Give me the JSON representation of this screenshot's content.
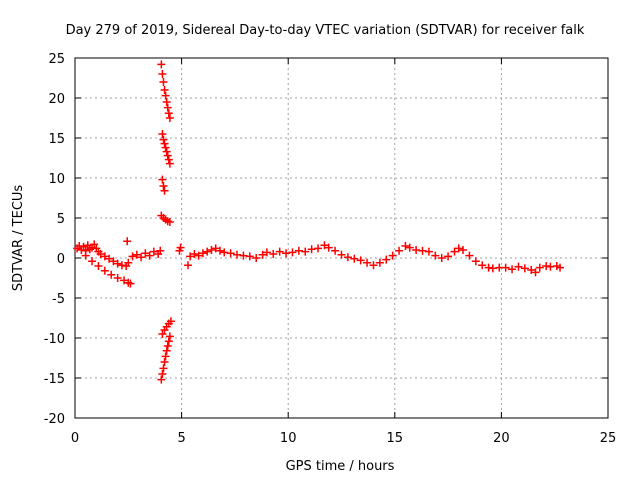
{
  "chart_data": {
    "type": "scatter",
    "title": "Day 279 of 2019, Sidereal Day-to-day VTEC variation (SDTVAR) for receiver falk",
    "xlabel": "GPS time / hours",
    "ylabel": "SDTVAR / TECUs",
    "xlim": [
      0,
      25
    ],
    "ylim": [
      -20,
      25
    ],
    "xticks": [
      0,
      5,
      10,
      15,
      20,
      25
    ],
    "yticks": [
      -20,
      -15,
      -10,
      -5,
      0,
      5,
      10,
      15,
      20,
      25
    ],
    "grid": true,
    "marker": "+",
    "color": "#ff0000",
    "series": [
      {
        "name": "main",
        "points": [
          [
            0.1,
            1.2
          ],
          [
            0.2,
            1.5
          ],
          [
            0.3,
            1.0
          ],
          [
            0.4,
            1.4
          ],
          [
            0.5,
            0.9
          ],
          [
            0.6,
            1.6
          ],
          [
            0.7,
            1.1
          ],
          [
            0.8,
            1.3
          ],
          [
            0.9,
            1.7
          ],
          [
            1.0,
            1.2
          ],
          [
            1.1,
            0.8
          ],
          [
            1.2,
            0.5
          ],
          [
            1.4,
            0.2
          ],
          [
            1.6,
            -0.1
          ],
          [
            1.8,
            -0.4
          ],
          [
            2.0,
            -0.7
          ],
          [
            2.2,
            -0.9
          ],
          [
            2.4,
            -1.0
          ],
          [
            2.45,
            2.1
          ],
          [
            2.5,
            -0.6
          ],
          [
            2.7,
            0.2
          ],
          [
            2.9,
            0.4
          ],
          [
            3.1,
            0.1
          ],
          [
            3.3,
            0.6
          ],
          [
            3.5,
            0.3
          ],
          [
            3.7,
            0.8
          ],
          [
            3.9,
            0.5
          ],
          [
            4.0,
            0.9
          ],
          [
            4.9,
            0.9
          ],
          [
            4.95,
            1.3
          ],
          [
            5.3,
            -0.9
          ],
          [
            5.4,
            0.2
          ],
          [
            5.6,
            0.5
          ],
          [
            5.8,
            0.3
          ],
          [
            6.0,
            0.6
          ],
          [
            6.2,
            0.8
          ],
          [
            6.4,
            1.0
          ],
          [
            6.6,
            1.2
          ],
          [
            6.8,
            0.9
          ],
          [
            7.0,
            0.7
          ],
          [
            7.3,
            0.6
          ],
          [
            7.6,
            0.4
          ],
          [
            7.9,
            0.3
          ],
          [
            8.2,
            0.2
          ],
          [
            8.5,
            0.0
          ],
          [
            8.8,
            0.4
          ],
          [
            9.0,
            0.7
          ],
          [
            9.3,
            0.5
          ],
          [
            9.6,
            0.8
          ],
          [
            9.9,
            0.6
          ],
          [
            10.2,
            0.7
          ],
          [
            10.5,
            0.9
          ],
          [
            10.8,
            0.8
          ],
          [
            11.1,
            1.1
          ],
          [
            11.4,
            1.2
          ],
          [
            11.7,
            1.6
          ],
          [
            11.9,
            1.3
          ],
          [
            12.2,
            0.9
          ],
          [
            12.5,
            0.4
          ],
          [
            12.8,
            0.1
          ],
          [
            13.1,
            -0.1
          ],
          [
            13.4,
            -0.3
          ],
          [
            13.7,
            -0.6
          ],
          [
            14.0,
            -0.9
          ],
          [
            14.3,
            -0.6
          ],
          [
            14.6,
            -0.2
          ],
          [
            14.9,
            0.3
          ],
          [
            15.2,
            0.9
          ],
          [
            15.5,
            1.5
          ],
          [
            15.7,
            1.3
          ],
          [
            16.0,
            1.0
          ],
          [
            16.3,
            0.9
          ],
          [
            16.6,
            0.8
          ],
          [
            16.9,
            0.3
          ],
          [
            17.2,
            0.0
          ],
          [
            17.5,
            0.2
          ],
          [
            17.8,
            0.8
          ],
          [
            18.0,
            1.2
          ],
          [
            18.2,
            1.0
          ],
          [
            18.5,
            0.3
          ],
          [
            18.8,
            -0.4
          ],
          [
            19.1,
            -0.9
          ],
          [
            19.4,
            -1.2
          ],
          [
            19.6,
            -1.3
          ],
          [
            19.9,
            -1.2
          ],
          [
            20.2,
            -1.2
          ],
          [
            20.5,
            -1.4
          ],
          [
            20.8,
            -1.1
          ],
          [
            21.1,
            -1.3
          ],
          [
            21.4,
            -1.5
          ],
          [
            21.6,
            -1.8
          ],
          [
            21.8,
            -1.2
          ],
          [
            22.1,
            -1.0
          ],
          [
            22.3,
            -1.1
          ],
          [
            22.6,
            -1.0
          ],
          [
            22.75,
            -1.2
          ]
        ]
      },
      {
        "name": "lower-branch",
        "points": [
          [
            0.5,
            0.3
          ],
          [
            0.8,
            -0.4
          ],
          [
            1.1,
            -1.0
          ],
          [
            1.4,
            -1.6
          ],
          [
            1.7,
            -2.1
          ],
          [
            2.0,
            -2.5
          ],
          [
            2.3,
            -2.8
          ],
          [
            2.5,
            -3.1
          ],
          [
            2.6,
            -3.2
          ]
        ]
      },
      {
        "name": "spike-upper",
        "points": [
          [
            4.05,
            24.2
          ],
          [
            4.1,
            23.0
          ],
          [
            4.15,
            22.0
          ],
          [
            4.2,
            21.0
          ],
          [
            4.25,
            20.3
          ],
          [
            4.3,
            19.5
          ],
          [
            4.35,
            18.8
          ],
          [
            4.4,
            18.1
          ],
          [
            4.45,
            17.5
          ],
          [
            4.1,
            15.5
          ],
          [
            4.15,
            14.8
          ],
          [
            4.2,
            14.3
          ],
          [
            4.25,
            13.8
          ],
          [
            4.3,
            13.3
          ],
          [
            4.35,
            12.8
          ],
          [
            4.4,
            12.3
          ],
          [
            4.45,
            11.8
          ],
          [
            4.1,
            9.8
          ],
          [
            4.15,
            9.0
          ],
          [
            4.2,
            8.4
          ],
          [
            4.05,
            5.3
          ],
          [
            4.15,
            5.0
          ],
          [
            4.25,
            4.8
          ],
          [
            4.35,
            4.6
          ],
          [
            4.45,
            4.5
          ]
        ]
      },
      {
        "name": "spike-lower",
        "points": [
          [
            4.05,
            -15.2
          ],
          [
            4.1,
            -14.5
          ],
          [
            4.15,
            -13.8
          ],
          [
            4.2,
            -13.0
          ],
          [
            4.25,
            -12.3
          ],
          [
            4.3,
            -11.6
          ],
          [
            4.35,
            -11.0
          ],
          [
            4.4,
            -10.4
          ],
          [
            4.45,
            -9.8
          ],
          [
            4.1,
            -9.5
          ],
          [
            4.2,
            -9.0
          ],
          [
            4.3,
            -8.6
          ],
          [
            4.4,
            -8.2
          ],
          [
            4.5,
            -7.9
          ]
        ]
      }
    ]
  }
}
